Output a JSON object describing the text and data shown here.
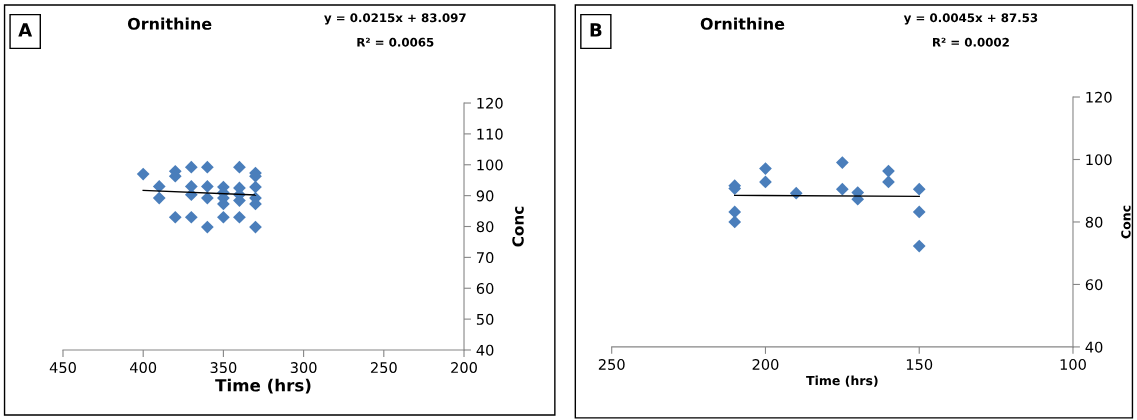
{
  "chart_data": [
    {
      "type": "scatter",
      "title": "Ornithine",
      "xlabel": "Time (hrs)",
      "ylabel": "Conc",
      "annotations": [
        "A",
        "y = 0.0215x + 83.097",
        "R² = 0.0065"
      ],
      "xlim": [
        450,
        200
      ],
      "xticks": [
        450,
        400,
        350,
        300,
        250,
        200
      ],
      "ylim": [
        40,
        120
      ],
      "yticks": [
        40,
        50,
        60,
        70,
        80,
        90,
        100,
        110,
        120
      ],
      "grid": false,
      "series": [
        {
          "marker": "diamond",
          "color": "#4a7ebb",
          "x": [
            400,
            390,
            390,
            380,
            380,
            380,
            370,
            370,
            370,
            370,
            360,
            360,
            360,
            360,
            350,
            350,
            350,
            350,
            350,
            340,
            340,
            340,
            340,
            340,
            330,
            330,
            330,
            330,
            330,
            330
          ],
          "values": [
            97,
            93,
            89.2,
            97.9,
            96.3,
            83,
            99.2,
            93,
            90.3,
            83,
            99.2,
            93,
            89.2,
            79.8,
            92.8,
            90.9,
            89.2,
            87.3,
            83,
            99.2,
            92.5,
            90.3,
            88.4,
            83,
            97.3,
            96.3,
            92.8,
            89.2,
            87.3,
            79.8
          ]
        },
        {
          "type": "line",
          "marker": "none",
          "color": "#000000",
          "x": [
            400,
            330
          ],
          "values": [
            91.7,
            90.2
          ]
        }
      ]
    },
    {
      "type": "scatter",
      "title": "Ornithine",
      "xlabel": "Time (hrs)",
      "ylabel": "Conc",
      "annotations": [
        "B",
        "y = 0.0045x + 87.53",
        "R² = 0.0002"
      ],
      "xlim": [
        250,
        100
      ],
      "xticks": [
        250,
        200,
        150,
        100
      ],
      "ylim": [
        40,
        120
      ],
      "yticks": [
        40,
        60,
        80,
        100,
        120
      ],
      "grid": false,
      "series": [
        {
          "marker": "diamond",
          "color": "#4a7ebb",
          "x": [
            210,
            210,
            210,
            210,
            200,
            200,
            190,
            175,
            175,
            170,
            170,
            160,
            160,
            150,
            150,
            150
          ],
          "values": [
            91.6,
            90.7,
            83.2,
            80.0,
            97.1,
            92.8,
            89.2,
            99.0,
            90.5,
            89.4,
            87.3,
            96.3,
            92.8,
            90.5,
            83.2,
            72.3
          ]
        },
        {
          "type": "line",
          "marker": "none",
          "color": "#000000",
          "x": [
            210,
            150
          ],
          "values": [
            88.5,
            88.2
          ]
        }
      ]
    }
  ]
}
